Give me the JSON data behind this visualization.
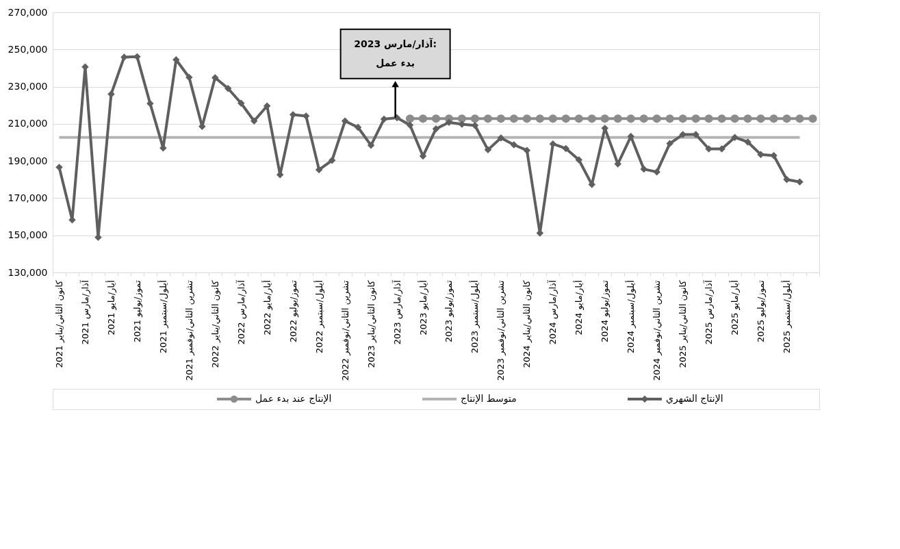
{
  "chart_data": {
    "type": "line",
    "categories": [
      "كانون الثاني/يناير 2021",
      null,
      "آذار/مارس 2021",
      null,
      "أيار/مايو 2021",
      null,
      "تموز/يوليو 2021",
      null,
      "أيلول/سبتمبر 2021",
      null,
      "تشرين الثاني/نوفمبر 2021",
      null,
      "كانون الثاني/يناير 2022",
      null,
      "آذار/مارس 2022",
      null,
      "أيار/مايو 2022",
      null,
      "تموز/يوليو 2022",
      null,
      "أيلول/سبتمبر 2022",
      null,
      "تشرين الثاني/نوفمبر 2022",
      null,
      "كانون الثاني/يناير 2023",
      null,
      "آذار/مارس 2023",
      null,
      "أيار/مايو 2023",
      null,
      "تموز/يوليو 2023",
      null,
      "أيلول/سبتمبر 2023",
      null,
      "تشرين الثاني/نوفمبر 2023",
      null,
      "كانون الثاني/يناير 2024",
      null,
      "آذار/مارس 2024",
      null,
      "أيار/مايو 2024",
      null,
      "تموز/يوليو 2024",
      null,
      "أيلول/سبتمبر 2024",
      null,
      "تشرين الثاني/نوفمبر 2024",
      null,
      "كانون الثاني/يناير 2025",
      null,
      "آذار/مارس 2025",
      null,
      "أيار/مايو 2025",
      null,
      "تموز/يوليو 2025",
      null,
      "أيلول/سبتمبر 2025",
      null,
      null
    ],
    "series": [
      {
        "name": "الإنتاج الشهري",
        "color": "#5f5f5f",
        "marker": "diamond",
        "values": [
          186600,
          158300,
          240600,
          148900,
          226000,
          245900,
          246100,
          220900,
          197000,
          244500,
          235000,
          208600,
          234800,
          229000,
          221100,
          211500,
          219600,
          182600,
          214900,
          214200,
          185300,
          190300,
          211500,
          208100,
          198400,
          212500,
          213300,
          209300,
          192600,
          207300,
          210800,
          209800,
          209100,
          196000,
          202400,
          198700,
          195700,
          151200,
          199200,
          196700,
          190600,
          177300,
          207600,
          188400,
          203200,
          185600,
          184100,
          199400,
          204200,
          204200,
          196500,
          196500,
          202700,
          200200,
          193500,
          192900,
          180000,
          178700,
          null
        ]
      },
      {
        "name": "متوسط الإنتاج",
        "color": "#b4b4b4",
        "marker": "none",
        "values": [
          202700,
          202700,
          202700,
          202700,
          202700,
          202700,
          202700,
          202700,
          202700,
          202700,
          202700,
          202700,
          202700,
          202700,
          202700,
          202700,
          202700,
          202700,
          202700,
          202700,
          202700,
          202700,
          202700,
          202700,
          202700,
          202700,
          202700,
          202700,
          202700,
          202700,
          202700,
          202700,
          202700,
          202700,
          202700,
          202700,
          202700,
          202700,
          202700,
          202700,
          202700,
          202700,
          202700,
          202700,
          202700,
          202700,
          202700,
          202700,
          202700,
          202700,
          202700,
          202700,
          202700,
          202700,
          202700,
          202700,
          202700,
          202700,
          null
        ]
      },
      {
        "name": "الإنتاج عند بدء عمل",
        "color": "#8c8c8c",
        "marker": "circle",
        "values": [
          null,
          null,
          null,
          null,
          null,
          null,
          null,
          null,
          null,
          null,
          null,
          null,
          null,
          null,
          null,
          null,
          null,
          null,
          null,
          null,
          null,
          null,
          null,
          null,
          null,
          null,
          null,
          212800,
          212800,
          212800,
          212800,
          212800,
          212800,
          212800,
          212800,
          212800,
          212800,
          212800,
          212800,
          212800,
          212800,
          212800,
          212800,
          212800,
          212800,
          212800,
          212800,
          212800,
          212800,
          212800,
          212800,
          212800,
          212800,
          212800,
          212800,
          212800,
          212800,
          212800,
          212800
        ]
      }
    ],
    "ylim": [
      130000,
      270000
    ],
    "yticks": [
      {
        "value": 130000,
        "label": "130,000"
      },
      {
        "value": 150000,
        "label": "150,000"
      },
      {
        "value": 170000,
        "label": "170,000"
      },
      {
        "value": 190000,
        "label": "190,000"
      },
      {
        "value": 210000,
        "label": "210,000"
      },
      {
        "value": 230000,
        "label": "230,000"
      },
      {
        "value": 250000,
        "label": "250,000"
      },
      {
        "value": 270000,
        "label": "270,000"
      }
    ],
    "grid": "y",
    "legend": "bottom",
    "line_style": "solid",
    "annotations": [
      "آذار/مارس 2023:\nبدء عمل"
    ]
  }
}
